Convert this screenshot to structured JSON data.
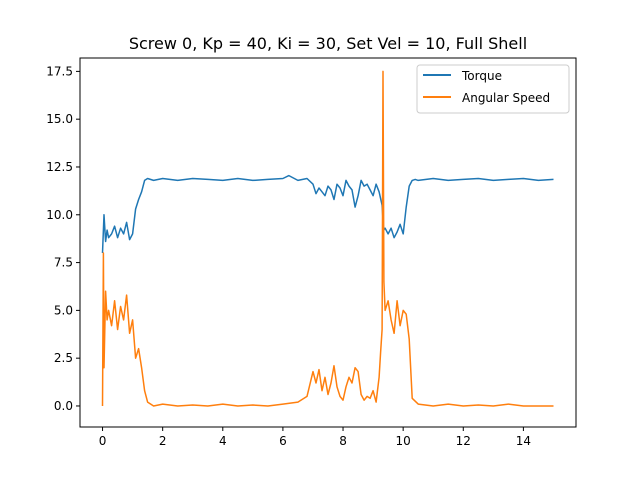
{
  "chart_data": {
    "type": "line",
    "title": "Screw 0, Kp = 40, Ki = 30, Set Vel = 10, Full Shell",
    "xlabel": "",
    "ylabel": "",
    "xlim": [
      -0.75,
      15.75
    ],
    "ylim": [
      -1.1,
      18.2
    ],
    "x_ticks": [
      0,
      2,
      4,
      6,
      8,
      10,
      12,
      14
    ],
    "x_tick_labels": [
      "0",
      "2",
      "4",
      "6",
      "8",
      "10",
      "12",
      "14"
    ],
    "y_ticks": [
      0.0,
      2.5,
      5.0,
      7.5,
      10.0,
      12.5,
      15.0,
      17.5
    ],
    "y_tick_labels": [
      "0.0",
      "2.5",
      "5.0",
      "7.5",
      "10.0",
      "12.5",
      "15.0",
      "17.5"
    ],
    "grid": false,
    "legend_position": "top-right",
    "series": [
      {
        "name": "Torque",
        "color": "#1f77b4",
        "x": [
          0.0,
          0.05,
          0.1,
          0.15,
          0.2,
          0.3,
          0.4,
          0.5,
          0.6,
          0.7,
          0.8,
          0.9,
          1.0,
          1.1,
          1.2,
          1.3,
          1.4,
          1.5,
          1.7,
          2.0,
          2.5,
          3.0,
          3.5,
          4.0,
          4.5,
          5.0,
          5.5,
          6.0,
          6.2,
          6.5,
          6.8,
          7.0,
          7.1,
          7.2,
          7.3,
          7.4,
          7.5,
          7.6,
          7.7,
          7.8,
          7.9,
          8.0,
          8.1,
          8.2,
          8.3,
          8.4,
          8.5,
          8.6,
          8.7,
          8.8,
          8.9,
          9.0,
          9.1,
          9.2,
          9.3,
          9.35,
          9.4,
          9.5,
          9.6,
          9.7,
          9.8,
          9.9,
          10.0,
          10.1,
          10.2,
          10.3,
          10.4,
          10.5,
          11.0,
          11.5,
          12.0,
          12.5,
          13.0,
          13.5,
          14.0,
          14.5,
          15.0
        ],
        "y": [
          8.0,
          10.0,
          8.6,
          9.2,
          8.8,
          9.0,
          9.4,
          8.8,
          9.3,
          9.0,
          9.6,
          8.7,
          9.0,
          10.3,
          10.8,
          11.2,
          11.8,
          11.9,
          11.8,
          11.9,
          11.8,
          11.9,
          11.85,
          11.8,
          11.9,
          11.8,
          11.85,
          11.9,
          12.05,
          11.8,
          11.9,
          11.6,
          11.1,
          11.4,
          11.2,
          11.0,
          11.5,
          11.3,
          10.8,
          11.6,
          11.4,
          11.0,
          11.8,
          11.5,
          11.3,
          10.4,
          11.0,
          11.8,
          11.5,
          11.6,
          11.3,
          11.0,
          11.6,
          11.2,
          10.5,
          9.2,
          9.3,
          9.0,
          9.3,
          8.8,
          9.1,
          9.5,
          9.0,
          10.4,
          11.5,
          11.8,
          11.85,
          11.8,
          11.9,
          11.8,
          11.85,
          11.9,
          11.8,
          11.85,
          11.9,
          11.8,
          11.85
        ]
      },
      {
        "name": "Angular Speed",
        "color": "#ff7f0e",
        "x": [
          0.0,
          0.03,
          0.05,
          0.1,
          0.15,
          0.2,
          0.3,
          0.4,
          0.5,
          0.6,
          0.7,
          0.8,
          0.9,
          1.0,
          1.1,
          1.2,
          1.3,
          1.4,
          1.5,
          1.7,
          2.0,
          2.5,
          3.0,
          3.5,
          4.0,
          4.5,
          5.0,
          5.5,
          6.0,
          6.5,
          6.8,
          7.0,
          7.1,
          7.2,
          7.3,
          7.4,
          7.5,
          7.6,
          7.7,
          7.8,
          7.9,
          8.0,
          8.1,
          8.2,
          8.3,
          8.4,
          8.5,
          8.6,
          8.7,
          8.8,
          8.9,
          9.0,
          9.1,
          9.2,
          9.25,
          9.3,
          9.33,
          9.36,
          9.4,
          9.5,
          9.6,
          9.7,
          9.8,
          9.9,
          10.0,
          10.1,
          10.2,
          10.3,
          10.5,
          11.0,
          11.5,
          12.0,
          12.5,
          13.0,
          13.5,
          14.0,
          14.5,
          15.0
        ],
        "y": [
          0.0,
          8.0,
          2.0,
          6.0,
          4.5,
          5.0,
          4.2,
          5.5,
          4.0,
          5.2,
          4.5,
          5.8,
          3.8,
          4.5,
          2.5,
          3.0,
          2.0,
          0.8,
          0.2,
          0.0,
          0.1,
          0.0,
          0.05,
          0.0,
          0.1,
          0.0,
          0.05,
          0.0,
          0.1,
          0.2,
          0.5,
          1.8,
          1.2,
          1.9,
          0.8,
          1.5,
          0.6,
          1.2,
          2.1,
          1.0,
          0.5,
          0.3,
          1.0,
          1.5,
          1.2,
          2.0,
          1.8,
          0.6,
          0.3,
          0.5,
          0.4,
          0.8,
          0.2,
          1.5,
          2.8,
          4.0,
          17.5,
          6.5,
          5.0,
          5.5,
          4.5,
          3.8,
          5.5,
          4.2,
          5.0,
          4.8,
          3.5,
          0.4,
          0.1,
          0.0,
          0.1,
          0.0,
          0.05,
          0.0,
          0.1,
          0.0,
          0.0,
          0.0
        ]
      }
    ]
  }
}
